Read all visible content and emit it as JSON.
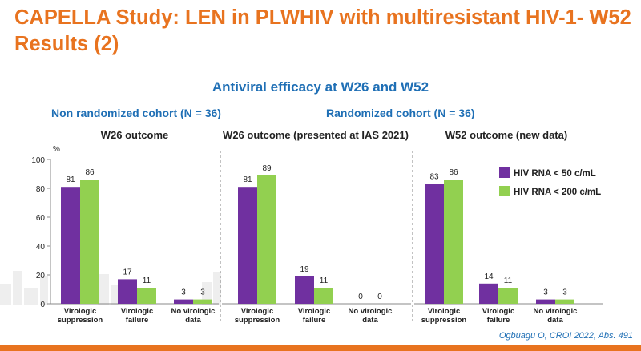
{
  "title": "CAPELLA Study: LEN in PLWHIV with multiresistant HIV-1- W52 Results (2)",
  "subtitle": "Antiviral efficacy at W26 and W52",
  "cohorts": {
    "non_randomized": "Non randomized cohort (N = 36)",
    "randomized": "Randomized cohort (N = 36)"
  },
  "reference": "Ogbuagu O, CROI 2022, Abs. 491",
  "colors": {
    "accent": "#e8731f",
    "heading": "#1f6fb5",
    "series1": "#7030a0",
    "series2": "#92d050"
  },
  "chart_data": {
    "type": "bar",
    "ylabel": "%",
    "ylim": [
      0,
      100
    ],
    "yticks": [
      0,
      20,
      40,
      60,
      80,
      100
    ],
    "legend": [
      {
        "name": "HIV RNA < 50 c/mL",
        "color": "#7030a0"
      },
      {
        "name": "HIV RNA < 200 c/mL",
        "color": "#92d050"
      }
    ],
    "panels": [
      {
        "title": "W26 outcome",
        "categories": [
          [
            "Virologic",
            "suppression"
          ],
          [
            "Virologic",
            "failure"
          ],
          [
            "No virologic",
            "data"
          ]
        ],
        "series": [
          {
            "name": "HIV RNA < 50 c/mL",
            "values": [
              81,
              17,
              3
            ]
          },
          {
            "name": "HIV RNA < 200 c/mL",
            "values": [
              86,
              11,
              3
            ]
          }
        ]
      },
      {
        "title": "W26 outcome (presented at IAS 2021)",
        "categories": [
          [
            "Virologic",
            "suppression"
          ],
          [
            "Virologic",
            "failure"
          ],
          [
            "No virologic",
            "data"
          ]
        ],
        "series": [
          {
            "name": "HIV RNA < 50 c/mL",
            "values": [
              81,
              19,
              0
            ]
          },
          {
            "name": "HIV RNA < 200 c/mL",
            "values": [
              89,
              11,
              0
            ]
          }
        ]
      },
      {
        "title": "W52 outcome (new data)",
        "categories": [
          [
            "Virologic",
            "suppression"
          ],
          [
            "Virologic",
            "failure"
          ],
          [
            "No virologic",
            "data"
          ]
        ],
        "series": [
          {
            "name": "HIV RNA < 50 c/mL",
            "values": [
              83,
              14,
              3
            ]
          },
          {
            "name": "HIV RNA < 200 c/mL",
            "values": [
              86,
              11,
              3
            ]
          }
        ]
      }
    ]
  }
}
